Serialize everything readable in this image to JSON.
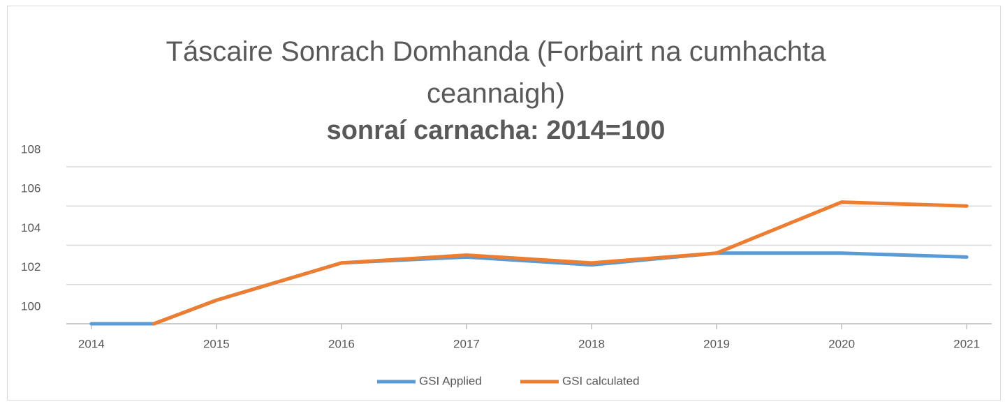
{
  "chart_data": {
    "type": "line",
    "title": "Táscaire Sonrach Domhanda (Forbairt na cumhachta ceannaigh)",
    "subtitle": "sonraí carnacha: 2014=100",
    "xlim": [
      2013.8,
      2021.2
    ],
    "xticks": [
      2014,
      2015,
      2016,
      2017,
      2018,
      2019,
      2020,
      2021
    ],
    "ylim": [
      100,
      108
    ],
    "yticks": [
      100,
      102,
      104,
      106,
      108
    ],
    "grid": true,
    "legend": "bottom",
    "series": [
      {
        "name": "GSI Applied",
        "color": "#5b9bd5",
        "x": [
          2014,
          2014.5,
          2015,
          2016,
          2017,
          2018,
          2019,
          2020,
          2021
        ],
        "values": [
          100,
          100,
          101.2,
          103.1,
          103.4,
          103.0,
          103.6,
          103.6,
          103.4
        ]
      },
      {
        "name": "GSI calculated",
        "color": "#ed7d31",
        "x": [
          2014.5,
          2015,
          2016,
          2017,
          2018,
          2019,
          2020,
          2021
        ],
        "values": [
          100,
          101.2,
          103.1,
          103.5,
          103.1,
          103.6,
          106.2,
          106.0
        ]
      }
    ]
  }
}
